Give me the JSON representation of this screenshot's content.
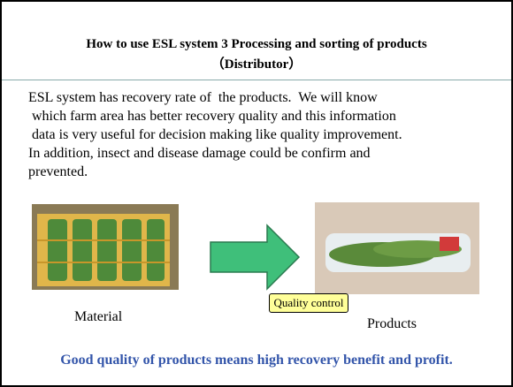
{
  "header": {
    "title_lines": [
      "How to use ESL system  3   Processing and sorting of products",
      "（Distributor）"
    ]
  },
  "body_lines": [
    "ESL system has recovery rate of  the products.  We will know",
    " which farm area has better recovery quality and this information",
    " data is very useful for decision making like quality improvement.",
    "In addition, insect and disease damage could be confirm and",
    "prevented."
  ],
  "figure": {
    "material_label": "Material",
    "process_label": "Quality control",
    "products_label": "Products"
  },
  "conclusion": "Good quality of products means high recovery benefit and profit."
}
